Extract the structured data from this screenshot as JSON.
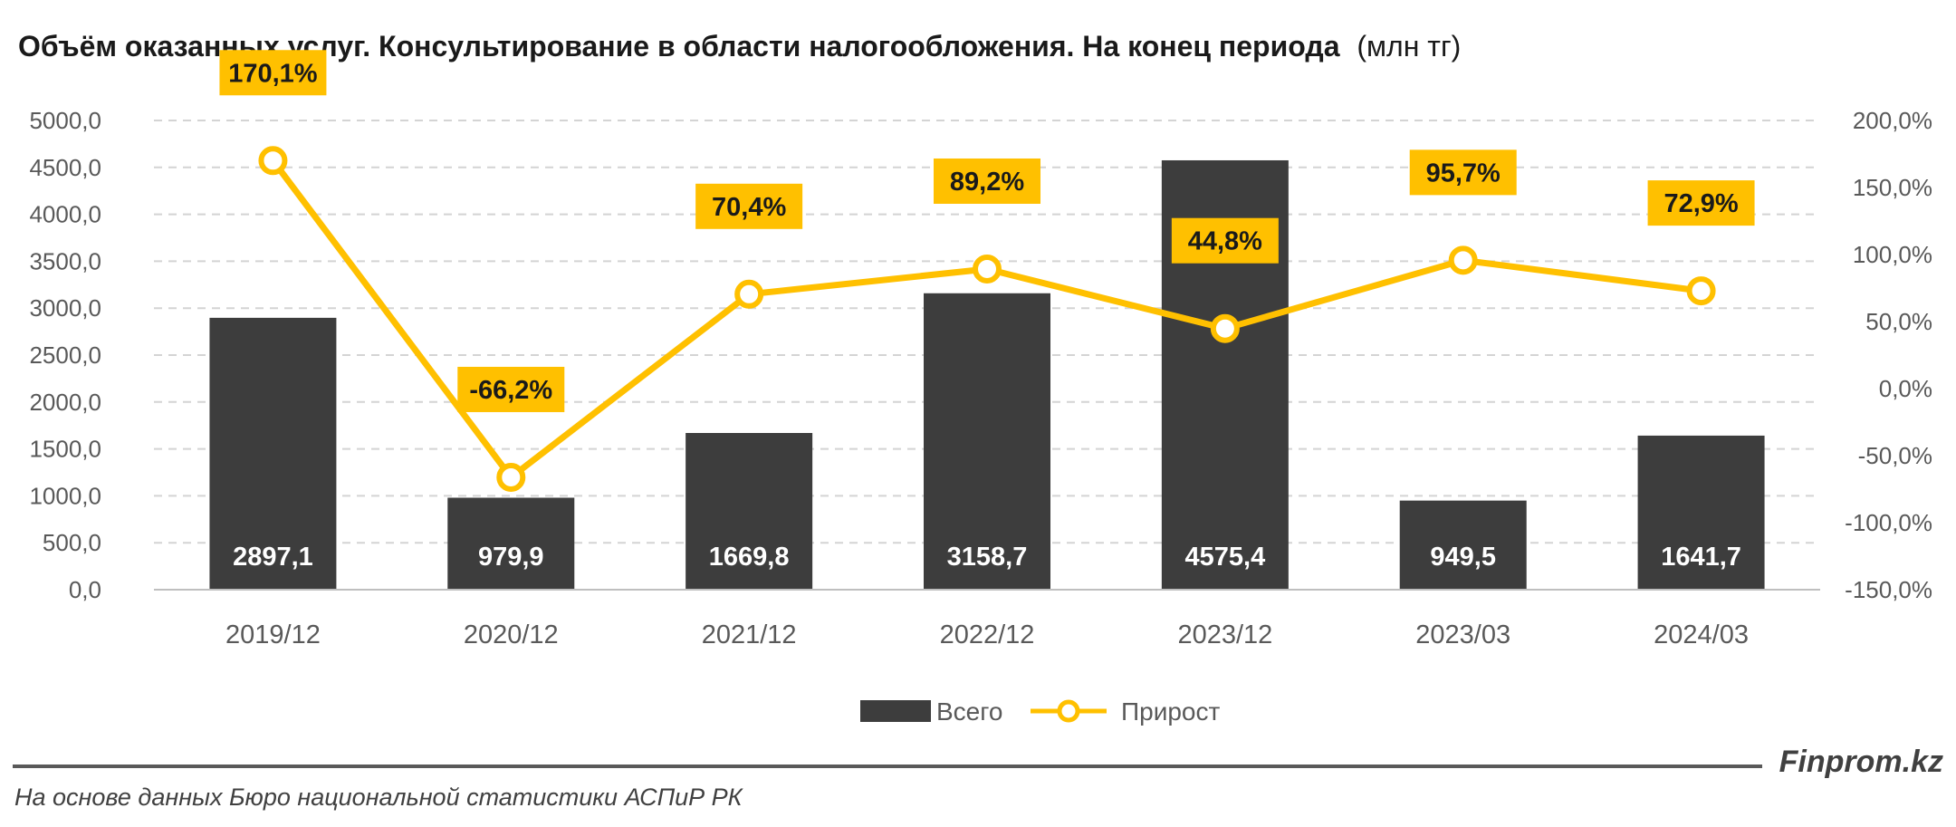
{
  "header": {
    "title_bold": "Объём оказанных услуг. Консультирование в области налогообложения. На конец периода",
    "title_unit": "(млн тг)"
  },
  "footer": {
    "brand": "Finprom.kz",
    "source": "На основе данных Бюро национальной статистики АСПиР РК"
  },
  "colors": {
    "bar": "#3d3d3d",
    "line": "#ffc000",
    "label_bg": "#ffc000",
    "grid": "#d4d4d4",
    "axis_text": "#595959",
    "rule": "#595959"
  },
  "chart_data": {
    "type": "bar",
    "categories": [
      "2019/12",
      "2020/12",
      "2021/12",
      "2022/12",
      "2023/12",
      "2023/03",
      "2024/03"
    ],
    "series": [
      {
        "name": "Всего",
        "type": "bar",
        "axis": "left",
        "values": [
          2897.1,
          979.9,
          1669.8,
          3158.7,
          4575.4,
          949.5,
          1641.7
        ],
        "labels": [
          "2897,1",
          "979,9",
          "1669,8",
          "3158,7",
          "4575,4",
          "949,5",
          "1641,7"
        ]
      },
      {
        "name": "Прирост",
        "type": "line",
        "axis": "right",
        "values": [
          170.1,
          -66.2,
          70.4,
          89.2,
          44.8,
          95.7,
          72.9
        ],
        "labels": [
          "170,1%",
          "-66,2%",
          "70,4%",
          "89,2%",
          "44,8%",
          "95,7%",
          "72,9%"
        ]
      }
    ],
    "left_axis": {
      "ylim": [
        0,
        5000
      ],
      "ticks": [
        0,
        500,
        1000,
        1500,
        2000,
        2500,
        3000,
        3500,
        4000,
        4500,
        5000
      ],
      "tick_labels": [
        "0,0",
        "500,0",
        "1000,0",
        "1500,0",
        "2000,0",
        "2500,0",
        "3000,0",
        "3500,0",
        "4000,0",
        "4500,0",
        "5000,0"
      ]
    },
    "right_axis": {
      "ylim": [
        -150,
        200
      ],
      "ticks": [
        -150,
        -100,
        -50,
        0,
        50,
        100,
        150,
        200
      ],
      "tick_labels": [
        "-150,0%",
        "-100,0%",
        "-50,0%",
        "0,0%",
        "50,0%",
        "100,0%",
        "150,0%",
        "200,0%"
      ]
    },
    "grid": true,
    "legend_position": "bottom"
  }
}
